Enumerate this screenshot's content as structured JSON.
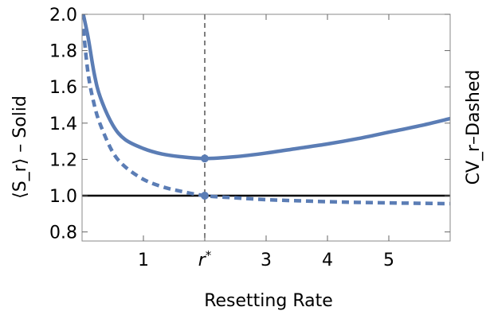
{
  "chart_data": {
    "type": "line",
    "xlabel": "Resetting Rate",
    "ylabel_left": "⟨S_r⟩ – Solid",
    "ylabel_right": "CV_r–Dashed",
    "xlim": [
      0,
      6
    ],
    "ylim": [
      0.75,
      2.0
    ],
    "x_ticks": [
      {
        "value": 1,
        "label": "1"
      },
      {
        "value": 2,
        "label": "r*"
      },
      {
        "value": 3,
        "label": "3"
      },
      {
        "value": 4,
        "label": "4"
      },
      {
        "value": 5,
        "label": "5"
      }
    ],
    "y_ticks": [
      {
        "value": 0.8,
        "label": "0.8"
      },
      {
        "value": 1.0,
        "label": "1.0"
      },
      {
        "value": 1.2,
        "label": "1.2"
      },
      {
        "value": 1.4,
        "label": "1.4"
      },
      {
        "value": 1.6,
        "label": "1.6"
      },
      {
        "value": 1.8,
        "label": "1.8"
      },
      {
        "value": 2.0,
        "label": "2.0"
      }
    ],
    "series": [
      {
        "style": "solid",
        "x": [
          0.02,
          0.1,
          0.2,
          0.3,
          0.5,
          0.7,
          1.0,
          1.3,
          1.6,
          2.0,
          2.5,
          3.0,
          3.5,
          4.0,
          4.5,
          5.0,
          5.5,
          6.0
        ],
        "y": [
          2.0,
          1.87,
          1.67,
          1.54,
          1.39,
          1.31,
          1.26,
          1.23,
          1.215,
          1.205,
          1.215,
          1.235,
          1.26,
          1.285,
          1.315,
          1.35,
          1.385,
          1.425
        ]
      },
      {
        "style": "dashed",
        "x": [
          0.02,
          0.1,
          0.2,
          0.3,
          0.5,
          0.7,
          1.0,
          1.3,
          1.6,
          2.0,
          2.5,
          3.0,
          3.5,
          4.0,
          4.5,
          5.0,
          5.5,
          6.0
        ],
        "y": [
          1.92,
          1.67,
          1.5,
          1.39,
          1.24,
          1.16,
          1.09,
          1.05,
          1.025,
          1.0,
          0.988,
          0.978,
          0.972,
          0.967,
          0.963,
          0.96,
          0.958,
          0.956
        ]
      }
    ],
    "reference_line_y": 1.0,
    "vertical_marker_x": 2,
    "marker_points": [
      {
        "x": 2,
        "y": 1.205
      },
      {
        "x": 2,
        "y": 1.0
      }
    ],
    "colors": {
      "curve": "#5b7db5",
      "reference": "#000000",
      "marker_line": "#555555"
    }
  }
}
